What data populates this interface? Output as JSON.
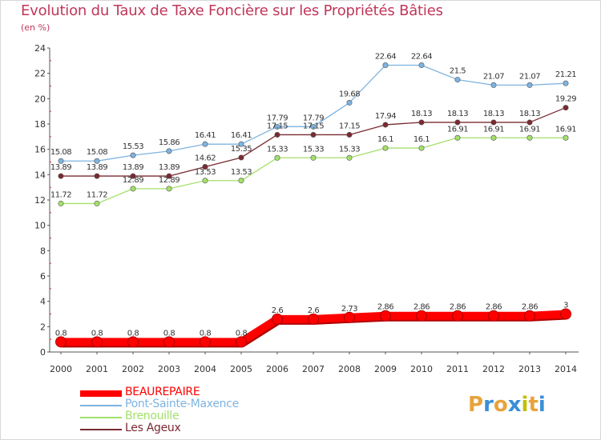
{
  "title": "Evolution du Taux de Taxe Foncière sur les Propriétés Bâties",
  "subtitle": "(en %)",
  "logo": {
    "text": "Proxiti",
    "colors": [
      "#e8a33c",
      "#3a8fd6",
      "#e8a33c",
      "#3a8fd6",
      "#c0c000",
      "#e8a33c",
      "#3a8fd6"
    ]
  },
  "chart_data": {
    "type": "line",
    "title": "Evolution du Taux de Taxe Foncière sur les Propriétés Bâties",
    "ylabel": "(en %)",
    "xlabel": "",
    "categories": [
      "2000",
      "2001",
      "2002",
      "2003",
      "2004",
      "2005",
      "2006",
      "2007",
      "2008",
      "2009",
      "2010",
      "2011",
      "2012",
      "2013",
      "2014"
    ],
    "ylim": [
      0,
      24
    ],
    "yticks": [
      "0",
      "2",
      "4",
      "6",
      "8",
      "10",
      "12",
      "14",
      "16",
      "18",
      "20",
      "22",
      "24"
    ],
    "grid": false,
    "legend_position": "bottom-left",
    "series": [
      {
        "name": "BEAUREPAIRE",
        "color": "#ff0000",
        "values": [
          0.8,
          0.8,
          0.8,
          0.8,
          0.8,
          0.8,
          2.6,
          2.6,
          2.73,
          2.86,
          2.86,
          2.86,
          2.86,
          2.86,
          3
        ],
        "labels": [
          "0.8",
          "0.8",
          "0.8",
          "0.8",
          "0.8",
          "0.8",
          "2.6",
          "2.6",
          "2.73",
          "2.86",
          "2.86",
          "2.86",
          "2.86",
          "2.86",
          "3"
        ]
      },
      {
        "name": "Pont-Sainte-Maxence",
        "color": "#7eb3e0",
        "values": [
          15.08,
          15.08,
          15.53,
          15.86,
          16.41,
          16.41,
          17.79,
          17.79,
          19.68,
          22.64,
          22.64,
          21.5,
          21.07,
          21.07,
          21.21
        ],
        "labels": [
          "15.08",
          "15.08",
          "15.53",
          "15.86",
          "16.41",
          "16.41",
          "17.79",
          "17.79",
          "19.68",
          "22.64",
          "22.64",
          "21.5",
          "21.07",
          "21.07",
          "21.21"
        ]
      },
      {
        "name": "Brenouille",
        "color": "#a3e06a",
        "values": [
          11.72,
          11.72,
          12.89,
          12.89,
          13.53,
          13.53,
          15.33,
          15.33,
          15.33,
          16.1,
          16.1,
          16.91,
          16.91,
          16.91,
          16.91
        ],
        "labels": [
          "11.72",
          "11.72",
          "12.89",
          "12.89",
          "13.53",
          "13.53",
          "15.33",
          "15.33",
          "15.33",
          "16.1",
          "16.1",
          "16.91",
          "16.91",
          "16.91",
          "16.91"
        ]
      },
      {
        "name": "Les Ageux",
        "color": "#7a2a32",
        "values": [
          13.89,
          13.89,
          13.89,
          13.89,
          14.62,
          15.35,
          17.15,
          17.15,
          17.15,
          17.94,
          18.13,
          18.13,
          18.13,
          18.13,
          19.29
        ],
        "labels": [
          "13.89",
          "13.89",
          "13.89",
          "13.89",
          "14.62",
          "15.35",
          "17.15",
          "17.15",
          "17.15",
          "17.94",
          "18.13",
          "18.13",
          "18.13",
          "18.13",
          "19.29"
        ]
      }
    ]
  }
}
